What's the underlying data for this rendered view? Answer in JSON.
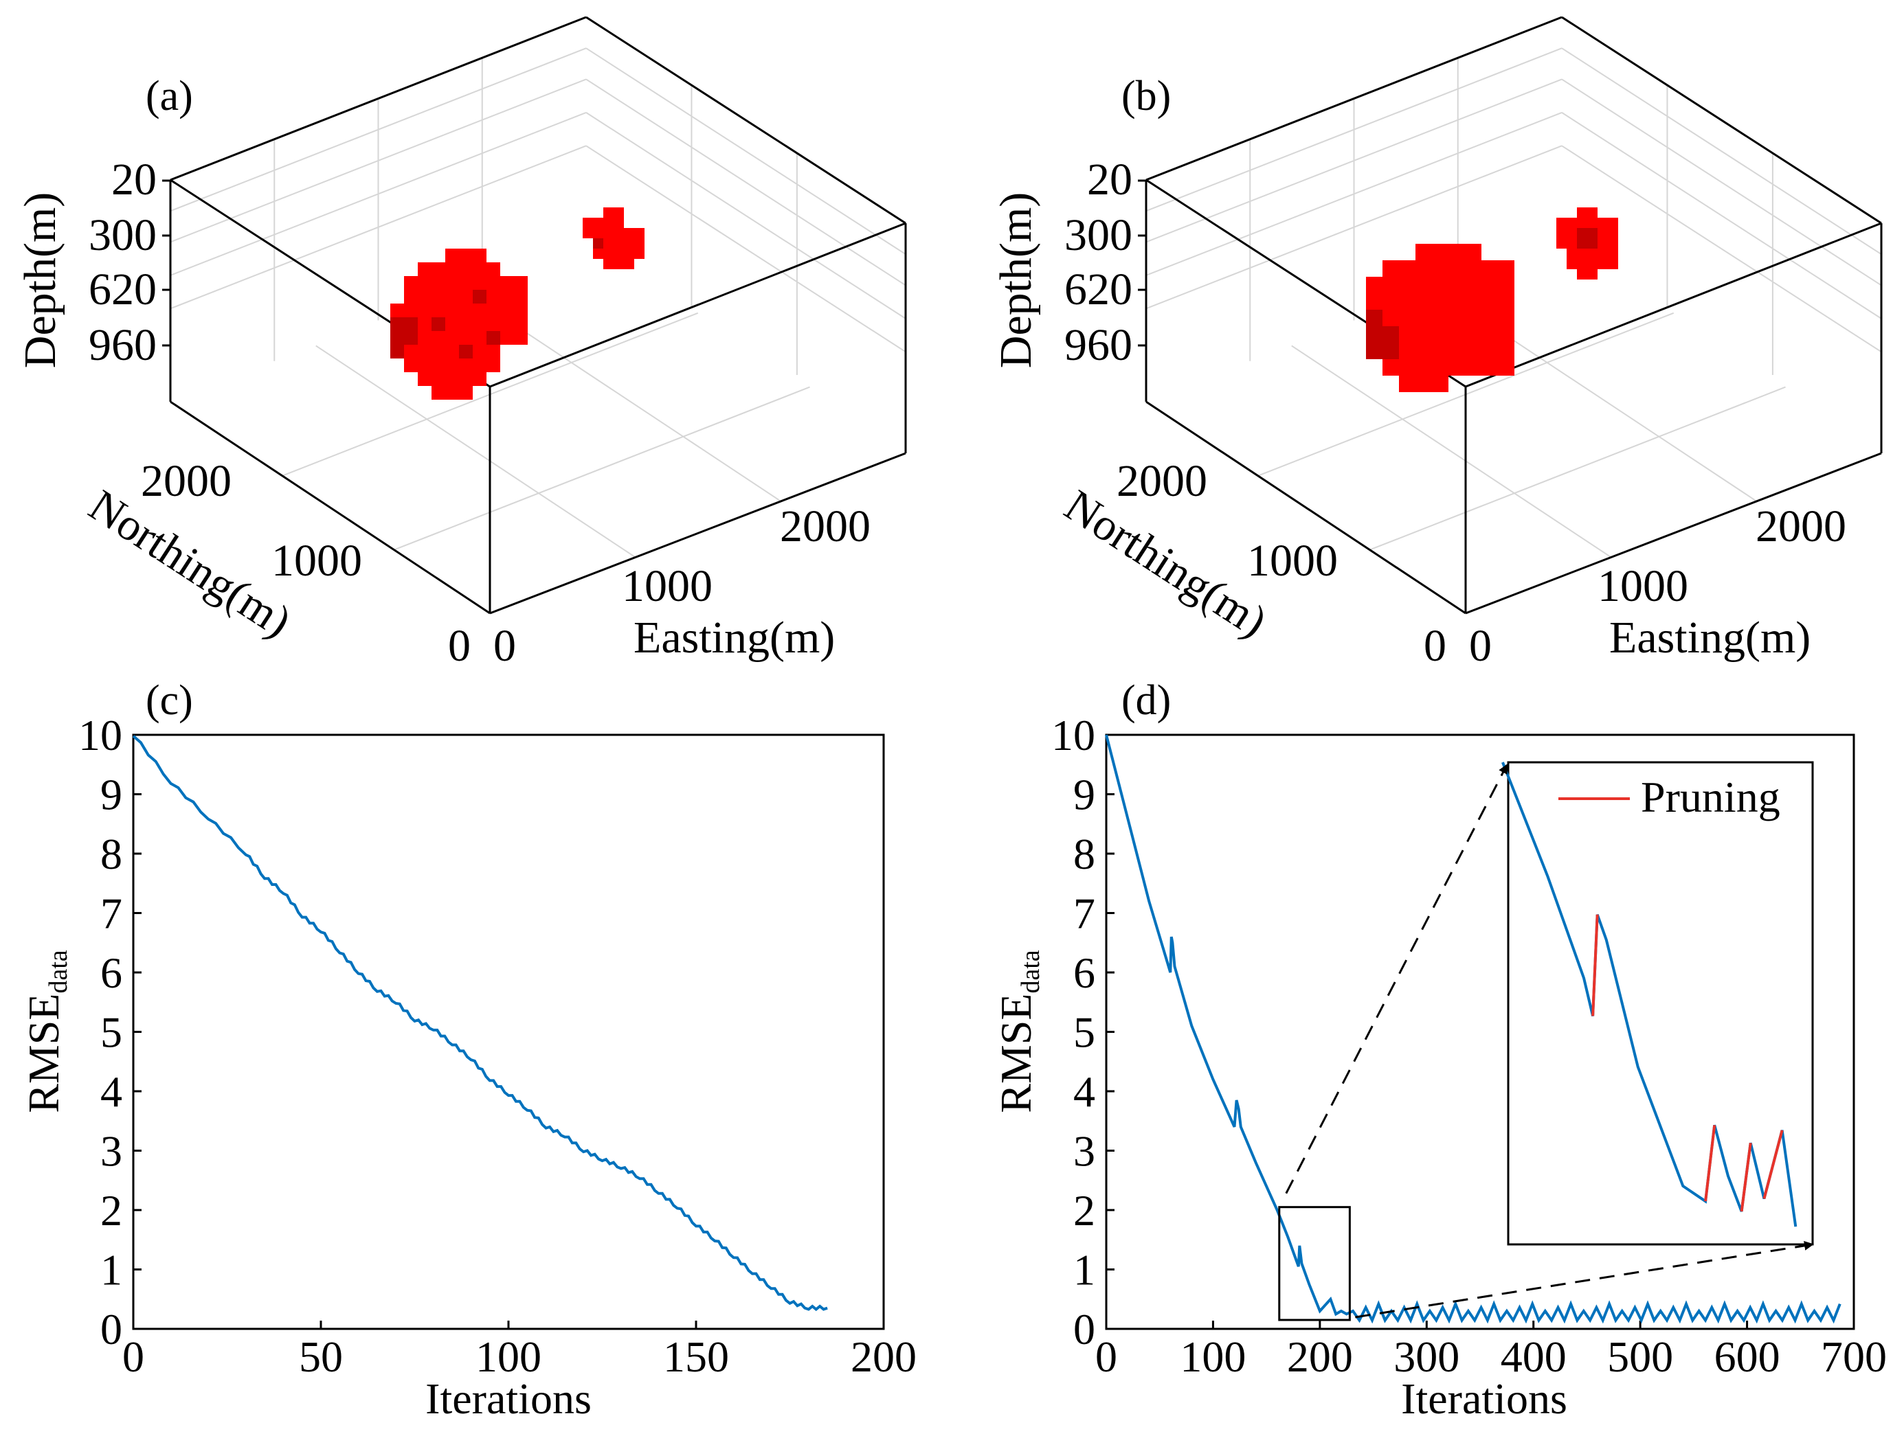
{
  "colors": {
    "curve": "#0072bd",
    "pruning": "#e8332a",
    "voxel": "#ff0000",
    "voxel_shade": "#c40000"
  },
  "panels": {
    "a": {
      "title": "(a)",
      "depth_label": "Depth(m)",
      "northing_label": "Northing(m)",
      "easting_label": "Easting(m)",
      "depth_ticks": [
        "20",
        "300",
        "620",
        "960"
      ],
      "northing_ticks": [
        "2000",
        "1000",
        "0"
      ],
      "easting_ticks": [
        "2000",
        "1000",
        "0"
      ]
    },
    "b": {
      "title": "(b)",
      "depth_label": "Depth(m)",
      "northing_label": "Northing(m)",
      "easting_label": "Easting(m)",
      "depth_ticks": [
        "20",
        "300",
        "620",
        "960"
      ],
      "northing_ticks": [
        "2000",
        "1000",
        "0"
      ],
      "easting_ticks": [
        "2000",
        "1000",
        "0"
      ]
    }
  },
  "chart_data": [
    {
      "panel": "c",
      "type": "line",
      "title": "(c)",
      "xlabel": "Iterations",
      "ylabel": "RMSE",
      "ylabel_sub": "data",
      "xlim": [
        0,
        200
      ],
      "ylim": [
        0,
        10
      ],
      "xticks": [
        0,
        50,
        100,
        150,
        200
      ],
      "yticks": [
        0,
        1,
        2,
        3,
        4,
        5,
        6,
        7,
        8,
        9,
        10
      ],
      "series": [
        {
          "name": "RMSE",
          "x": [
            0,
            10,
            20,
            30,
            35,
            40,
            45,
            50,
            55,
            60,
            65,
            70,
            75,
            80,
            85,
            90,
            95,
            100,
            105,
            110,
            115,
            120,
            125,
            130,
            135,
            140,
            145,
            150,
            155,
            160,
            165,
            170,
            175,
            180,
            185
          ],
          "y": [
            10,
            9.2,
            8.6,
            8.0,
            7.6,
            7.35,
            6.95,
            6.7,
            6.35,
            6.0,
            5.7,
            5.5,
            5.2,
            5.05,
            4.8,
            4.55,
            4.2,
            3.95,
            3.7,
            3.4,
            3.25,
            3.0,
            2.85,
            2.72,
            2.55,
            2.3,
            2.05,
            1.75,
            1.5,
            1.22,
            0.95,
            0.7,
            0.45,
            0.35,
            0.35
          ]
        }
      ]
    },
    {
      "panel": "d",
      "type": "line",
      "title": "(d)",
      "xlabel": "Iterations",
      "ylabel": "RMSE",
      "ylabel_sub": "data",
      "xlim": [
        0,
        700
      ],
      "ylim": [
        0,
        10
      ],
      "xticks": [
        0,
        100,
        200,
        300,
        400,
        500,
        600,
        700
      ],
      "yticks": [
        0,
        1,
        2,
        3,
        4,
        5,
        6,
        7,
        8,
        9,
        10
      ],
      "legend": {
        "label": "Pruning",
        "location": "inset top-right"
      },
      "inset_x_range": [
        162,
        228
      ],
      "inset_y_range": [
        0.15,
        2.05
      ],
      "series": [
        {
          "name": "RMSE",
          "x": [
            0,
            20,
            40,
            60,
            61,
            62,
            64,
            80,
            100,
            120,
            122,
            124,
            126,
            140,
            160,
            170,
            180,
            181,
            183,
            190,
            200,
            210,
            215,
            220,
            225
          ],
          "y": [
            10,
            8.6,
            7.2,
            6.0,
            6.6,
            6.5,
            6.1,
            5.1,
            4.2,
            3.4,
            3.85,
            3.7,
            3.4,
            2.8,
            2.0,
            1.55,
            1.05,
            1.4,
            1.1,
            0.75,
            0.3,
            0.5,
            0.25,
            0.3,
            0.25
          ]
        }
      ],
      "pruning_spikes_x": [
        62,
        122,
        181,
        205,
        213,
        222
      ],
      "tail_oscillation": {
        "x_range": [
          225,
          690
        ],
        "low": 0.1,
        "high": 0.45
      }
    }
  ]
}
